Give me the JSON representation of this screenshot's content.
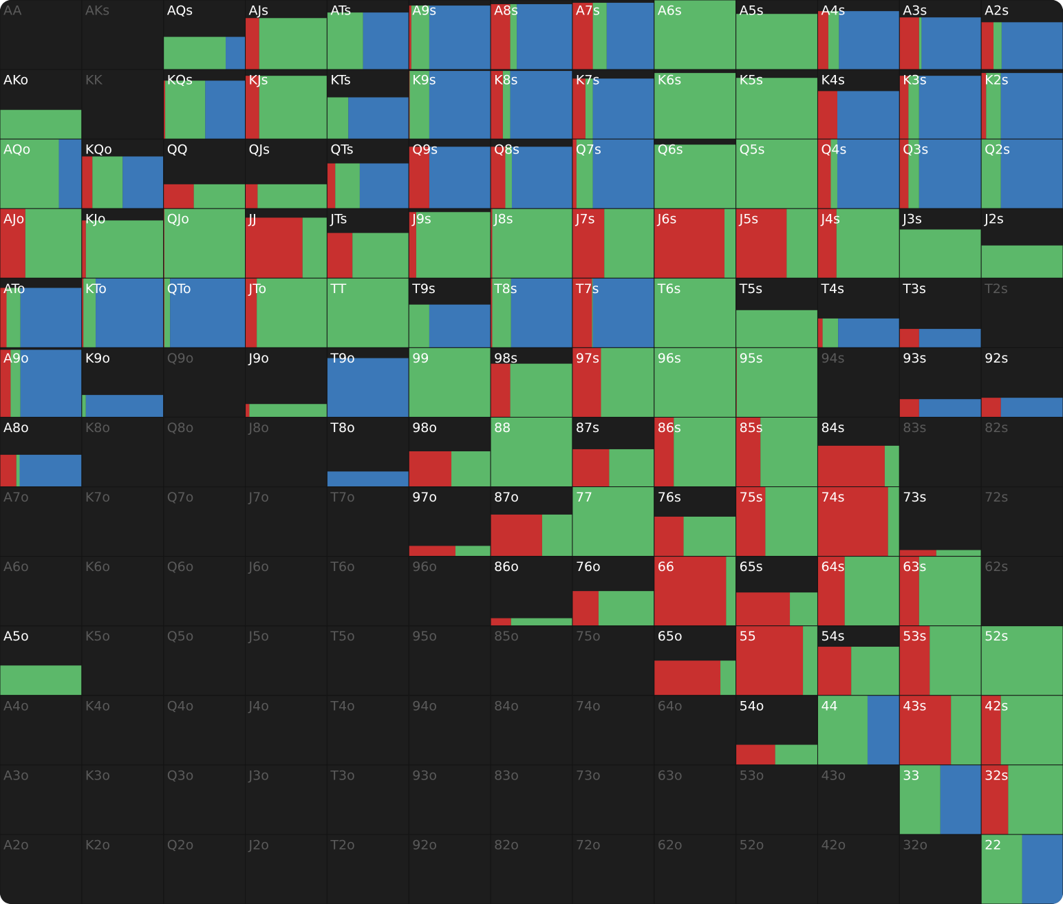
{
  "grid": {
    "colors": {
      "red": "#c8302f",
      "green": "#5cb86a",
      "blue": "#3b78b8"
    },
    "rows": [
      [
        {
          "hand": "AA"
        },
        {
          "hand": "AKs"
        },
        {
          "hand": "AQs",
          "freq": 47,
          "green": 76,
          "blue": 24
        },
        {
          "hand": "AJs",
          "freq": 74,
          "red": 17,
          "green": 83
        },
        {
          "hand": "ATs",
          "freq": 82,
          "green": 44,
          "blue": 56
        },
        {
          "hand": "A9s",
          "freq": 92,
          "red": 3,
          "green": 22,
          "blue": 75
        },
        {
          "hand": "A8s",
          "freq": 94,
          "red": 24,
          "green": 8,
          "blue": 68
        },
        {
          "hand": "A7s",
          "freq": 96,
          "red": 25,
          "green": 17,
          "blue": 58
        },
        {
          "hand": "A6s",
          "freq": 100,
          "green": 100
        },
        {
          "hand": "A5s",
          "freq": 80,
          "green": 100
        },
        {
          "hand": "A4s",
          "freq": 84,
          "red": 13,
          "green": 13,
          "blue": 74
        },
        {
          "hand": "A3s",
          "freq": 75,
          "red": 24,
          "green": 3,
          "blue": 73
        },
        {
          "hand": "A2s",
          "freq": 68,
          "red": 15,
          "green": 10,
          "blue": 75
        }
      ],
      [
        {
          "hand": "AKo",
          "freq": 42,
          "green": 100
        },
        {
          "hand": "KK"
        },
        {
          "hand": "KQs",
          "freq": 84,
          "red": 2,
          "green": 49,
          "blue": 49
        },
        {
          "hand": "KJs",
          "freq": 91,
          "red": 17,
          "green": 83
        },
        {
          "hand": "KTs",
          "freq": 60,
          "green": 26,
          "blue": 74
        },
        {
          "hand": "K9s",
          "freq": 98,
          "red": 1,
          "green": 24,
          "blue": 75
        },
        {
          "hand": "K8s",
          "freq": 98,
          "red": 15,
          "green": 9,
          "blue": 76
        },
        {
          "hand": "K7s",
          "freq": 87,
          "red": 16,
          "green": 9,
          "blue": 75
        },
        {
          "hand": "K6s",
          "freq": 95,
          "green": 100
        },
        {
          "hand": "K5s",
          "freq": 88,
          "green": 100
        },
        {
          "hand": "K4s",
          "freq": 69,
          "red": 24,
          "blue": 76
        },
        {
          "hand": "K3s",
          "freq": 91,
          "red": 11,
          "green": 13,
          "blue": 76
        },
        {
          "hand": "K2s",
          "freq": 95,
          "red": 6,
          "green": 18,
          "blue": 76
        }
      ],
      [
        {
          "hand": "AQo",
          "freq": 100,
          "green": 72,
          "blue": 28
        },
        {
          "hand": "KQo",
          "freq": 75,
          "red": 13,
          "green": 37,
          "blue": 50
        },
        {
          "hand": "QQ",
          "freq": 35,
          "red": 37,
          "green": 63
        },
        {
          "hand": "QJs",
          "freq": 35,
          "red": 15,
          "green": 85
        },
        {
          "hand": "QTs",
          "freq": 65,
          "red": 10,
          "green": 30,
          "blue": 60
        },
        {
          "hand": "Q9s",
          "freq": 89,
          "red": 25,
          "blue": 75
        },
        {
          "hand": "Q8s",
          "freq": 89,
          "red": 18,
          "green": 8,
          "blue": 74
        },
        {
          "hand": "Q7s",
          "freq": 100,
          "red": 5,
          "green": 20,
          "blue": 75
        },
        {
          "hand": "Q6s",
          "freq": 92,
          "green": 100
        },
        {
          "hand": "Q5s",
          "freq": 100,
          "green": 100
        },
        {
          "hand": "Q4s",
          "freq": 100,
          "red": 16,
          "green": 8,
          "blue": 76
        },
        {
          "hand": "Q3s",
          "freq": 100,
          "red": 11,
          "green": 13,
          "blue": 76
        },
        {
          "hand": "Q2s",
          "freq": 100,
          "green": 24,
          "blue": 76
        }
      ],
      [
        {
          "hand": "AJo",
          "freq": 100,
          "red": 31,
          "green": 69
        },
        {
          "hand": "KJo",
          "freq": 83,
          "red": 5,
          "green": 95
        },
        {
          "hand": "QJo",
          "freq": 100,
          "red": 1,
          "green": 99
        },
        {
          "hand": "JJ",
          "freq": 87,
          "red": 70,
          "green": 30
        },
        {
          "hand": "JTs",
          "freq": 65,
          "red": 31,
          "green": 69
        },
        {
          "hand": "J9s",
          "freq": 95,
          "red": 9,
          "green": 91
        },
        {
          "hand": "J8s",
          "freq": 100,
          "red": 2,
          "green": 98
        },
        {
          "hand": "J7s",
          "freq": 100,
          "red": 39,
          "green": 61
        },
        {
          "hand": "J6s",
          "freq": 100,
          "red": 86,
          "green": 14
        },
        {
          "hand": "J5s",
          "freq": 100,
          "red": 62,
          "green": 38
        },
        {
          "hand": "J4s",
          "freq": 100,
          "red": 23,
          "green": 77
        },
        {
          "hand": "J3s",
          "freq": 70,
          "green": 100
        },
        {
          "hand": "J2s",
          "freq": 47,
          "green": 100
        }
      ],
      [
        {
          "hand": "ATo",
          "freq": 86,
          "red": 8,
          "green": 17,
          "blue": 75
        },
        {
          "hand": "KTo",
          "freq": 100,
          "red": 2,
          "green": 15,
          "blue": 83
        },
        {
          "hand": "QTo",
          "freq": 100,
          "red": 1,
          "green": 7,
          "blue": 92
        },
        {
          "hand": "JTo",
          "freq": 100,
          "red": 14,
          "green": 86
        },
        {
          "hand": "TT",
          "freq": 100,
          "green": 100
        },
        {
          "hand": "T9s",
          "freq": 62,
          "green": 25,
          "blue": 75
        },
        {
          "hand": "T8s",
          "freq": 100,
          "red": 2,
          "green": 23,
          "blue": 75
        },
        {
          "hand": "T7s",
          "freq": 100,
          "red": 24,
          "green": 1,
          "blue": 75
        },
        {
          "hand": "T6s",
          "freq": 100,
          "green": 100
        },
        {
          "hand": "T5s",
          "freq": 54,
          "green": 100
        },
        {
          "hand": "T4s",
          "freq": 42,
          "red": 6,
          "green": 19,
          "blue": 75
        },
        {
          "hand": "T3s",
          "freq": 27,
          "red": 24,
          "blue": 76
        },
        {
          "hand": "T2s"
        }
      ],
      [
        {
          "hand": "A9o",
          "freq": 97,
          "red": 13,
          "green": 12,
          "blue": 75
        },
        {
          "hand": "K9o",
          "freq": 32,
          "green": 5,
          "blue": 95
        },
        {
          "hand": "Q9o"
        },
        {
          "hand": "J9o",
          "freq": 19,
          "red": 5,
          "green": 95
        },
        {
          "hand": "T9o",
          "freq": 85,
          "blue": 100
        },
        {
          "hand": "99",
          "freq": 100,
          "green": 100
        },
        {
          "hand": "98s",
          "freq": 77,
          "red": 24,
          "green": 76
        },
        {
          "hand": "97s",
          "freq": 100,
          "red": 35,
          "green": 65
        },
        {
          "hand": "96s",
          "freq": 100,
          "green": 100
        },
        {
          "hand": "95s",
          "freq": 100,
          "red": 1,
          "green": 99
        },
        {
          "hand": "94s"
        },
        {
          "hand": "93s",
          "freq": 26,
          "red": 24,
          "blue": 76
        },
        {
          "hand": "92s",
          "freq": 28,
          "red": 24,
          "blue": 76
        }
      ],
      [
        {
          "hand": "A8o",
          "freq": 46,
          "red": 20,
          "green": 4,
          "blue": 76
        },
        {
          "hand": "K8o"
        },
        {
          "hand": "Q8o"
        },
        {
          "hand": "J8o"
        },
        {
          "hand": "T8o",
          "freq": 22,
          "blue": 100
        },
        {
          "hand": "98o",
          "freq": 51,
          "red": 52,
          "green": 48
        },
        {
          "hand": "88",
          "freq": 100,
          "green": 100
        },
        {
          "hand": "87s",
          "freq": 54,
          "red": 45,
          "green": 55
        },
        {
          "hand": "86s",
          "freq": 100,
          "red": 24,
          "green": 76
        },
        {
          "hand": "85s",
          "freq": 100,
          "red": 30,
          "green": 70
        },
        {
          "hand": "84s",
          "freq": 59,
          "red": 82,
          "green": 18
        },
        {
          "hand": "83s"
        },
        {
          "hand": "82s"
        }
      ],
      [
        {
          "hand": "A7o"
        },
        {
          "hand": "K7o"
        },
        {
          "hand": "Q7o"
        },
        {
          "hand": "J7o"
        },
        {
          "hand": "T7o"
        },
        {
          "hand": "97o",
          "freq": 15,
          "red": 57,
          "green": 43
        },
        {
          "hand": "87o",
          "freq": 60,
          "red": 63,
          "green": 37
        },
        {
          "hand": "77",
          "freq": 100,
          "green": 100
        },
        {
          "hand": "76s",
          "freq": 57,
          "red": 36,
          "green": 64
        },
        {
          "hand": "75s",
          "freq": 100,
          "red": 36,
          "green": 64
        },
        {
          "hand": "74s",
          "freq": 100,
          "red": 86,
          "green": 14
        },
        {
          "hand": "73s",
          "freq": 9,
          "red": 45,
          "green": 55
        },
        {
          "hand": "72s"
        }
      ],
      [
        {
          "hand": "A6o"
        },
        {
          "hand": "K6o"
        },
        {
          "hand": "Q6o"
        },
        {
          "hand": "J6o"
        },
        {
          "hand": "T6o"
        },
        {
          "hand": "96o"
        },
        {
          "hand": "86o",
          "freq": 11,
          "red": 25,
          "green": 75
        },
        {
          "hand": "76o",
          "freq": 50,
          "red": 32,
          "green": 68
        },
        {
          "hand": "66",
          "freq": 100,
          "red": 88,
          "green": 12
        },
        {
          "hand": "65s",
          "freq": 48,
          "red": 66,
          "green": 34
        },
        {
          "hand": "64s",
          "freq": 100,
          "red": 33,
          "green": 67
        },
        {
          "hand": "63s",
          "freq": 100,
          "red": 24,
          "green": 76
        },
        {
          "hand": "62s"
        }
      ],
      [
        {
          "hand": "A5o",
          "freq": 43,
          "green": 100
        },
        {
          "hand": "K5o"
        },
        {
          "hand": "Q5o"
        },
        {
          "hand": "J5o"
        },
        {
          "hand": "T5o"
        },
        {
          "hand": "95o"
        },
        {
          "hand": "85o"
        },
        {
          "hand": "75o"
        },
        {
          "hand": "65o",
          "freq": 50,
          "red": 81,
          "green": 19
        },
        {
          "hand": "55",
          "freq": 100,
          "red": 82,
          "green": 18
        },
        {
          "hand": "54s",
          "freq": 70,
          "red": 41,
          "green": 59
        },
        {
          "hand": "53s",
          "freq": 100,
          "red": 37,
          "green": 63
        },
        {
          "hand": "52s",
          "freq": 100,
          "green": 100
        }
      ],
      [
        {
          "hand": "A4o"
        },
        {
          "hand": "K4o"
        },
        {
          "hand": "Q4o"
        },
        {
          "hand": "J4o"
        },
        {
          "hand": "T4o"
        },
        {
          "hand": "94o"
        },
        {
          "hand": "84o"
        },
        {
          "hand": "74o"
        },
        {
          "hand": "64o"
        },
        {
          "hand": "54o",
          "freq": 29,
          "red": 48,
          "green": 52
        },
        {
          "hand": "44",
          "freq": 100,
          "green": 61,
          "blue": 39
        },
        {
          "hand": "43s",
          "freq": 100,
          "red": 63,
          "green": 37
        },
        {
          "hand": "42s",
          "freq": 100,
          "red": 24,
          "green": 76
        }
      ],
      [
        {
          "hand": "A3o"
        },
        {
          "hand": "K3o"
        },
        {
          "hand": "Q3o"
        },
        {
          "hand": "J3o"
        },
        {
          "hand": "T3o"
        },
        {
          "hand": "93o"
        },
        {
          "hand": "83o"
        },
        {
          "hand": "73o"
        },
        {
          "hand": "63o"
        },
        {
          "hand": "53o"
        },
        {
          "hand": "43o"
        },
        {
          "hand": "33",
          "freq": 100,
          "green": 50,
          "blue": 50
        },
        {
          "hand": "32s",
          "freq": 100,
          "red": 33,
          "green": 67
        }
      ],
      [
        {
          "hand": "A2o"
        },
        {
          "hand": "K2o"
        },
        {
          "hand": "Q2o"
        },
        {
          "hand": "J2o"
        },
        {
          "hand": "T2o"
        },
        {
          "hand": "92o"
        },
        {
          "hand": "82o"
        },
        {
          "hand": "72o"
        },
        {
          "hand": "62o"
        },
        {
          "hand": "52o"
        },
        {
          "hand": "42o"
        },
        {
          "hand": "32o"
        },
        {
          "hand": "22",
          "freq": 100,
          "green": 50,
          "blue": 50
        }
      ]
    ]
  }
}
